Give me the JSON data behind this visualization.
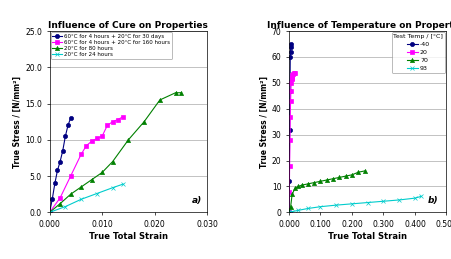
{
  "left": {
    "title": "Influence of Cure on Properties",
    "xlabel": "True Total Strain",
    "ylabel": "True Stress / [N/mm²]",
    "xlim": [
      0,
      0.03
    ],
    "ylim": [
      0,
      25.0
    ],
    "xticks": [
      0.0,
      0.01,
      0.02,
      0.03
    ],
    "yticks": [
      0.0,
      5.0,
      10.0,
      15.0,
      20.0,
      25.0
    ],
    "label_a": "a)",
    "series": [
      {
        "label": "60°C for 4 hours + 20°C for 30 days",
        "color": "#000080",
        "marker": "o",
        "markersize": 3,
        "x": [
          0.0,
          0.0005,
          0.001,
          0.0015,
          0.002,
          0.0025,
          0.003,
          0.0035,
          0.004
        ],
        "y": [
          0.0,
          1.8,
          4.0,
          5.8,
          7.0,
          8.5,
          10.5,
          12.0,
          13.0
        ]
      },
      {
        "label": "60°C for 4 hours + 20°C for 160 hours",
        "color": "#FF00FF",
        "marker": "s",
        "markersize": 3,
        "x": [
          0.0,
          0.002,
          0.004,
          0.006,
          0.007,
          0.008,
          0.009,
          0.01,
          0.011,
          0.012,
          0.013,
          0.014
        ],
        "y": [
          0.0,
          2.0,
          5.0,
          8.0,
          9.2,
          9.8,
          10.2,
          10.5,
          12.0,
          12.5,
          12.8,
          13.2
        ]
      },
      {
        "label": "20°C for 80 hours",
        "color": "#008000",
        "marker": "^",
        "markersize": 3,
        "x": [
          0.0,
          0.002,
          0.004,
          0.006,
          0.008,
          0.01,
          0.012,
          0.015,
          0.018,
          0.021,
          0.024,
          0.025
        ],
        "y": [
          0.0,
          1.2,
          2.5,
          3.5,
          4.5,
          5.5,
          7.0,
          10.0,
          12.5,
          15.5,
          16.5,
          16.5
        ]
      },
      {
        "label": "20°C for 24 hours",
        "color": "#00CCCC",
        "marker": "x",
        "markersize": 3,
        "x": [
          0.0,
          0.003,
          0.006,
          0.009,
          0.012,
          0.014
        ],
        "y": [
          0.0,
          0.8,
          1.8,
          2.6,
          3.4,
          3.9
        ]
      }
    ]
  },
  "right": {
    "title": "Influence of Temperature on Properties",
    "xlabel": "True Total Strain",
    "ylabel": "True Stress / [N/mm²]",
    "xlim": [
      0,
      0.5
    ],
    "ylim": [
      0,
      70
    ],
    "xticks": [
      0.0,
      0.1,
      0.2,
      0.3,
      0.4,
      0.5
    ],
    "yticks": [
      0,
      10,
      20,
      30,
      40,
      50,
      60,
      70
    ],
    "legend_title": "Test Temp / [°C]",
    "label_b": "b)",
    "series": [
      {
        "label": "-40",
        "color": "#000080",
        "marker": "o",
        "markersize": 3,
        "x": [
          0.0,
          0.001,
          0.002,
          0.003,
          0.004,
          0.005,
          0.006,
          0.007
        ],
        "y": [
          0.0,
          12.0,
          32.0,
          47.0,
          60.0,
          62.0,
          64.0,
          65.0
        ]
      },
      {
        "label": "20",
        "color": "#FF00FF",
        "marker": "s",
        "markersize": 3,
        "x": [
          0.0,
          0.001,
          0.002,
          0.003,
          0.004,
          0.005,
          0.006,
          0.007,
          0.008,
          0.009,
          0.01,
          0.012,
          0.015,
          0.02
        ],
        "y": [
          0.0,
          8.0,
          18.0,
          28.0,
          37.0,
          43.0,
          47.0,
          50.0,
          51.5,
          52.0,
          53.0,
          53.5,
          54.0,
          54.0
        ]
      },
      {
        "label": "70",
        "color": "#008000",
        "marker": "^",
        "markersize": 3,
        "x": [
          0.0,
          0.005,
          0.01,
          0.02,
          0.03,
          0.04,
          0.06,
          0.08,
          0.1,
          0.12,
          0.14,
          0.16,
          0.18,
          0.2,
          0.22,
          0.24
        ],
        "y": [
          0.0,
          2.0,
          7.0,
          9.5,
          10.0,
          10.5,
          11.0,
          11.5,
          12.0,
          12.5,
          13.0,
          13.5,
          14.0,
          14.5,
          15.5,
          16.0
        ]
      },
      {
        "label": "93",
        "color": "#00CCCC",
        "marker": "x",
        "markersize": 3,
        "x": [
          0.0,
          0.01,
          0.03,
          0.06,
          0.1,
          0.15,
          0.2,
          0.25,
          0.3,
          0.35,
          0.4,
          0.42
        ],
        "y": [
          0.0,
          0.3,
          0.8,
          1.5,
          2.2,
          2.8,
          3.3,
          3.8,
          4.3,
          4.8,
          5.5,
          6.2
        ]
      }
    ]
  },
  "bg_color": "#FFFFFF",
  "plot_bg": "#FFFFFF",
  "grid_color": "#AAAAAA",
  "border_color": "#000000"
}
